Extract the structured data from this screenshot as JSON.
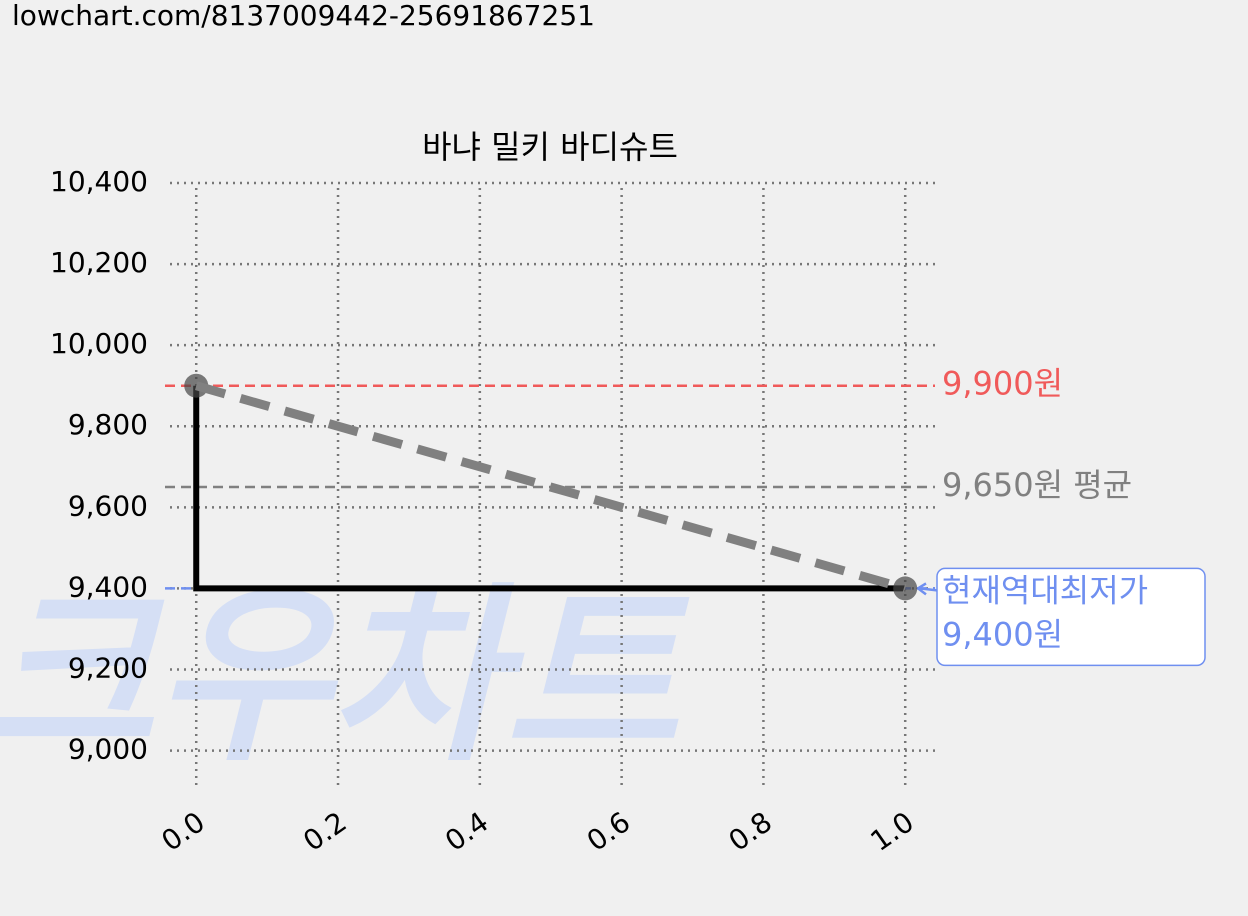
{
  "header": {
    "url": "lowchart.com/8137009442-25691867251"
  },
  "chart_data": {
    "type": "line",
    "title": "바냐 밀키 바디슈트",
    "watermark": "크우차트",
    "x": [
      0,
      1
    ],
    "series": [
      {
        "color": "#000000",
        "values": [
          9900,
          9400
        ],
        "step": "pre",
        "style": "solid",
        "markers": true
      },
      {
        "color": "#808080",
        "values": [
          9900,
          9400
        ],
        "style": "dashed"
      }
    ],
    "hlines": [
      {
        "value": 9900,
        "color": "#f05a5a",
        "label": [
          "9,900원"
        ]
      },
      {
        "value": 9650,
        "color": "#808080",
        "label": [
          "9,650원 평균"
        ]
      },
      {
        "value": 9400,
        "color": "#6f8ff0",
        "label": [
          "현재역대최저가",
          "9,400원"
        ],
        "boxed": true
      }
    ],
    "xlim": [
      -0.037,
      1.042
    ],
    "ylim": [
      8920,
      10400
    ],
    "xticks": [
      {
        "value": 0,
        "label": "0.0"
      },
      0.2,
      0.4,
      0.6,
      0.8,
      {
        "value": 1,
        "label": "1.0"
      }
    ],
    "yticks": [
      {
        "value": 9000,
        "label": "9,000"
      },
      {
        "value": 9200,
        "label": "9,200"
      },
      {
        "value": 9400,
        "label": "9,400"
      },
      {
        "value": 9600,
        "label": "9,600"
      },
      {
        "value": 9800,
        "label": "9,800"
      },
      {
        "value": 10000,
        "label": "10,000"
      },
      {
        "value": 10200,
        "label": "10,200"
      },
      {
        "value": 10400,
        "label": "10,400"
      }
    ],
    "grid": true
  }
}
